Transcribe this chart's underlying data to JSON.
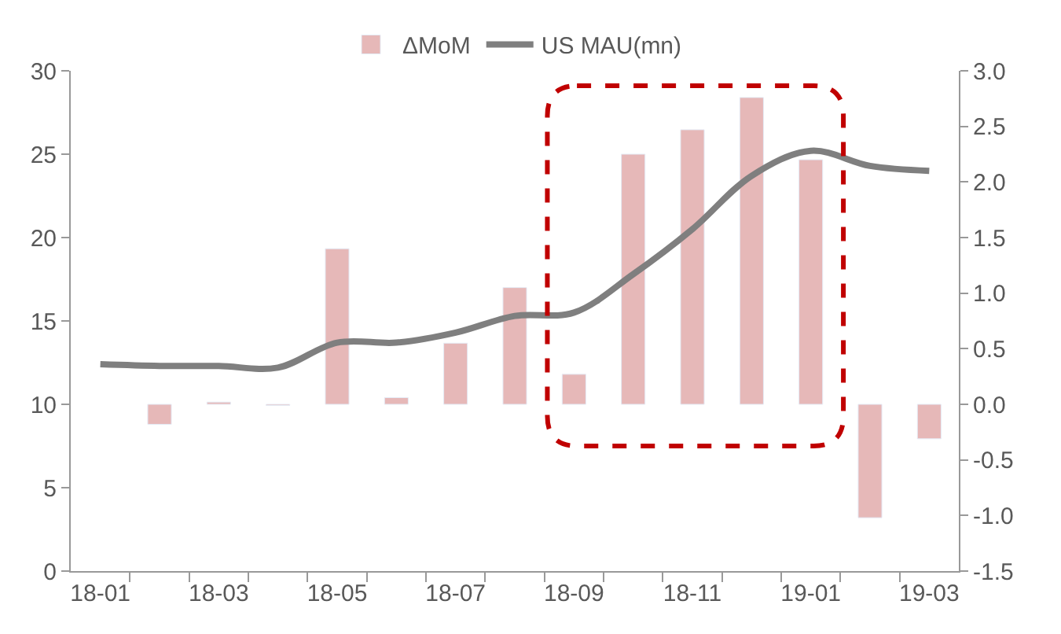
{
  "chart_data": {
    "type": "bar",
    "categories": [
      "18-01",
      null,
      "18-03",
      null,
      "18-05",
      null,
      "18-07",
      null,
      "18-09",
      null,
      "18-11",
      null,
      "19-01",
      null,
      "19-03"
    ],
    "series": [
      {
        "name": "ΔMoM",
        "axis": "y2",
        "color": "#e6b8b8",
        "values": [
          null,
          -0.18,
          0.02,
          -0.01,
          1.4,
          0.06,
          0.55,
          1.05,
          0.27,
          2.25,
          2.47,
          2.76,
          2.2,
          -1.02,
          -0.31
        ]
      },
      {
        "name": "US MAU(mn)",
        "type": "line",
        "color": "#7f7f7f",
        "values": [
          12.4,
          12.3,
          12.3,
          12.2,
          13.7,
          13.7,
          14.3,
          15.3,
          15.5,
          17.8,
          20.5,
          23.7,
          25.2,
          24.3,
          24.0
        ]
      }
    ],
    "ylim": [
      0,
      30
    ],
    "yticks": [
      0,
      5,
      10,
      15,
      20,
      25,
      30
    ],
    "y2lim": [
      -1.5,
      3.0
    ],
    "y2ticks": [
      {
        "value": -1.5,
        "label": "-1.5"
      },
      {
        "value": -1.0,
        "label": "-1.0"
      },
      {
        "value": -0.5,
        "label": "-0.5"
      },
      {
        "value": 0,
        "label": "0.0"
      },
      {
        "value": 0.5,
        "label": "0.5"
      },
      {
        "value": 1.0,
        "label": "1.0"
      },
      {
        "value": 1.5,
        "label": "1.5"
      },
      {
        "value": 2.0,
        "label": "2.0"
      },
      {
        "value": 2.5,
        "label": "2.5"
      },
      {
        "value": 3.0,
        "label": "3.0"
      }
    ],
    "legend": "top",
    "marker": "none",
    "line_style": "solid"
  }
}
